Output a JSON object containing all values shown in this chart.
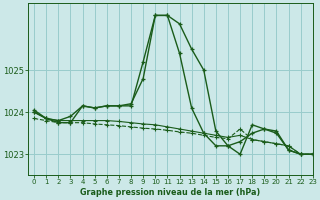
{
  "title": "Graphe pression niveau de la mer (hPa)",
  "background_color": "#cce8e8",
  "grid_color": "#99cccc",
  "line_color": "#1a5c1a",
  "xlim": [
    -0.5,
    23
  ],
  "ylim": [
    1022.5,
    1026.6
  ],
  "yticks": [
    1023,
    1024,
    1025
  ],
  "xticks": [
    0,
    1,
    2,
    3,
    4,
    5,
    6,
    7,
    8,
    9,
    10,
    11,
    12,
    13,
    14,
    15,
    16,
    17,
    18,
    19,
    20,
    21,
    22,
    23
  ],
  "series": [
    [
      1024.0,
      1023.85,
      1023.8,
      1023.8,
      1023.8,
      1023.8,
      1023.8,
      1023.78,
      1023.75,
      1023.72,
      1023.7,
      1023.65,
      1023.6,
      1023.55,
      1023.5,
      1023.45,
      1023.4,
      1023.45,
      1023.35,
      1023.3,
      1023.25,
      1023.2,
      1023.0,
      1023.0
    ],
    [
      1024.0,
      1023.85,
      1023.8,
      1023.9,
      1024.15,
      1024.1,
      1024.15,
      1024.15,
      1024.2,
      1024.8,
      1026.3,
      1026.3,
      1026.1,
      1025.5,
      1025.0,
      1023.55,
      1023.2,
      1023.0,
      1023.7,
      1023.6,
      1023.55,
      1023.1,
      1023.0,
      1023.0
    ],
    [
      1024.05,
      1023.85,
      1023.75,
      1023.75,
      1024.15,
      1024.1,
      1024.15,
      1024.15,
      1024.15,
      1025.2,
      1026.3,
      1026.3,
      1025.4,
      1024.1,
      1023.5,
      1023.2,
      1023.2,
      1023.3,
      1023.5,
      1023.6,
      1023.5,
      1023.1,
      1023.0,
      1023.0
    ],
    [
      1023.85,
      1023.8,
      1023.75,
      1023.75,
      1023.75,
      1023.72,
      1023.7,
      1023.68,
      1023.65,
      1023.62,
      1023.6,
      1023.57,
      1023.53,
      1023.5,
      1023.45,
      1023.4,
      1023.37,
      1023.6,
      1023.35,
      1023.3,
      1023.25,
      1023.2,
      1023.0,
      1023.0
    ]
  ]
}
